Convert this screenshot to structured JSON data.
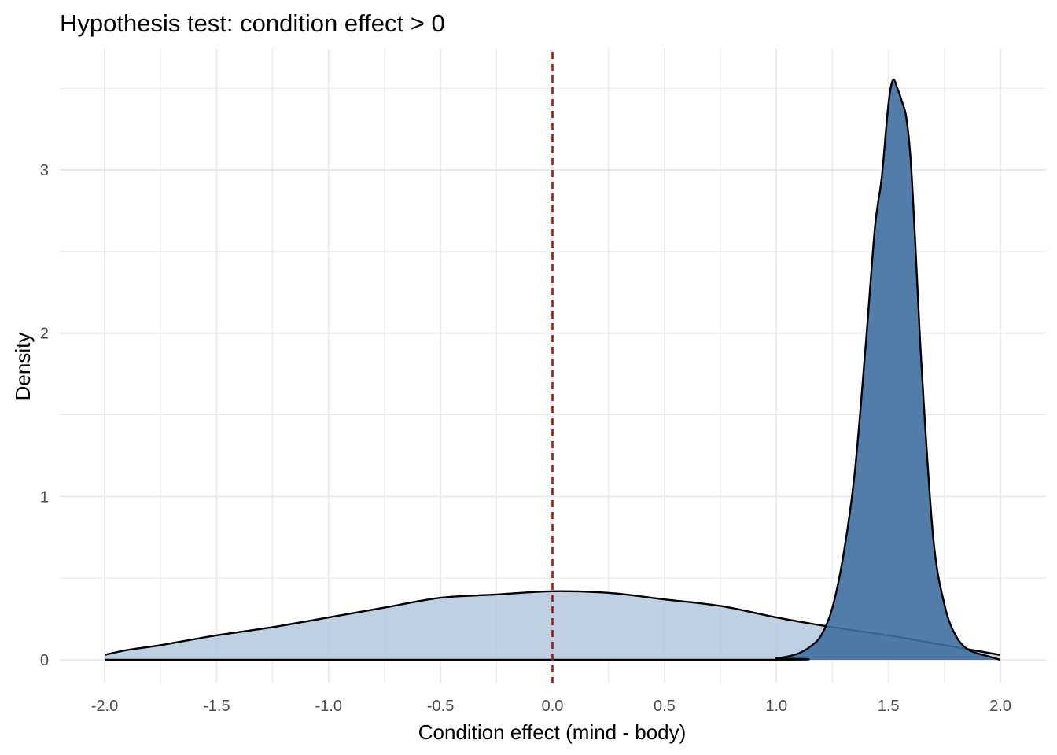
{
  "chart_data": {
    "type": "area",
    "title": "Hypothesis test: condition effect > 0",
    "xlabel": "Condition effect (mind - body)",
    "ylabel": "Density",
    "xlim": [
      -2.0,
      2.0
    ],
    "ylim": [
      0,
      3.6
    ],
    "x_ticks": [
      "-2.0",
      "-1.5",
      "-1.0",
      "-0.5",
      "0.0",
      "0.5",
      "1.0",
      "1.5",
      "2.0"
    ],
    "y_ticks": [
      "0",
      "1",
      "2",
      "3"
    ],
    "grid": true,
    "legend": "none",
    "reference_line": {
      "x": 0,
      "style": "dashed",
      "color": "#9e1b1b"
    },
    "series": [
      {
        "fill": "#b3c8dc",
        "fill_opacity": 0.85,
        "x": [
          -2.0,
          -1.9,
          -1.75,
          -1.5,
          -1.25,
          -1.0,
          -0.75,
          -0.5,
          -0.25,
          0.0,
          0.25,
          0.5,
          0.75,
          1.0,
          1.25,
          1.5,
          1.75,
          2.0
        ],
        "values": [
          0.03,
          0.06,
          0.09,
          0.15,
          0.2,
          0.26,
          0.32,
          0.38,
          0.4,
          0.42,
          0.41,
          0.37,
          0.33,
          0.26,
          0.2,
          0.15,
          0.09,
          0.03
        ]
      },
      {
        "fill": "#3f6fa0",
        "fill_opacity": 0.9,
        "x": [
          -2.0,
          0.9,
          1.0,
          1.05,
          1.1,
          1.15,
          1.2,
          1.25,
          1.3,
          1.35,
          1.4,
          1.44,
          1.47,
          1.5,
          1.52,
          1.54,
          1.56,
          1.58,
          1.6,
          1.62,
          1.65,
          1.7,
          1.75,
          1.8,
          1.86,
          1.95,
          2.0
        ],
        "values": [
          0.0,
          0.0,
          0.01,
          0.02,
          0.04,
          0.08,
          0.15,
          0.32,
          0.65,
          1.15,
          1.95,
          2.65,
          2.95,
          3.4,
          3.55,
          3.5,
          3.42,
          3.32,
          3.05,
          2.55,
          1.75,
          0.75,
          0.34,
          0.15,
          0.06,
          0.02,
          0.0
        ]
      }
    ]
  }
}
